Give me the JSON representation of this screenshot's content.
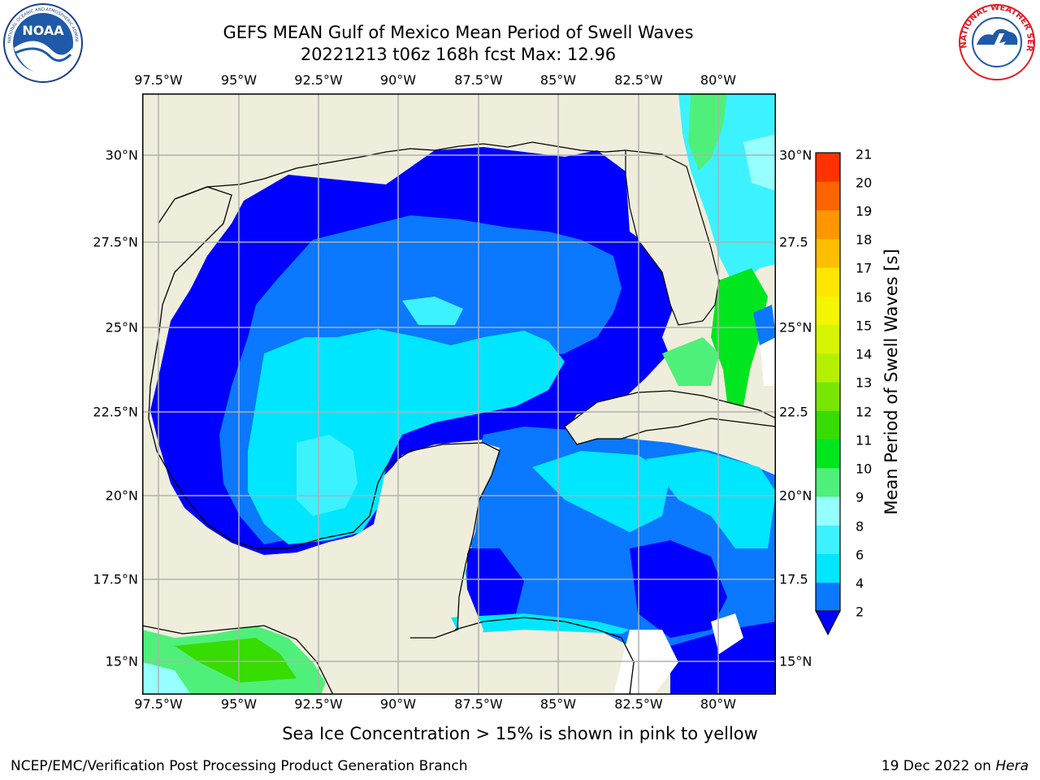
{
  "header": {
    "title_line1": "GEFS MEAN Gulf of Mexico Mean Period of Swell Waves",
    "title_line2": "20221213 t06z 168h fcst   Max: 12.96"
  },
  "logos": {
    "left": "NOAA",
    "left_ring_text": "NATIONAL OCEANIC AND ATMOSPHERIC ADMINISTRATION · U.S. DEPARTMENT OF COMMERCE",
    "right_ring_text": "NATIONAL WEATHER SERVICE"
  },
  "map": {
    "lon_ticks": [
      "97.5°W",
      "95°W",
      "92.5°W",
      "90°W",
      "87.5°W",
      "85°W",
      "82.5°W",
      "80°W"
    ],
    "lat_ticks_left": [
      "30°N",
      "27.5°N",
      "25°N",
      "22.5°N",
      "20°N",
      "17.5°N",
      "15°N"
    ],
    "lat_ticks_right": [
      "30°N",
      "27.5",
      "25°N",
      "22.5",
      "20°N",
      "17.5",
      "15°N"
    ],
    "land_color": "#efeedc",
    "grid_color": "#b0b0b0"
  },
  "colorbar": {
    "label": "Mean Period of Swell Waves [s]",
    "ticks": [
      "2",
      "4",
      "6",
      "8",
      "9",
      "10",
      "11",
      "12",
      "13",
      "14",
      "15",
      "16",
      "17",
      "18",
      "19",
      "20",
      "21"
    ],
    "colors": [
      "#0a78ff",
      "#00e6ff",
      "#3cf2ff",
      "#96ffff",
      "#4ff07a",
      "#00e61e",
      "#37dc00",
      "#78e600",
      "#b4f000",
      "#d7f500",
      "#f5f500",
      "#ffe600",
      "#ffbe00",
      "#ff9600",
      "#ff6400",
      "#ff3200",
      "#ff0000"
    ],
    "extend_color": "#0000ff"
  },
  "caption": "Sea Ice Concentration > 15% is shown in pink to yellow",
  "footer": {
    "left": "NCEP/EMC/Verification Post Processing Product Generation Branch",
    "right_date": "19 Dec 2022 on ",
    "right_machine": "Hera"
  }
}
